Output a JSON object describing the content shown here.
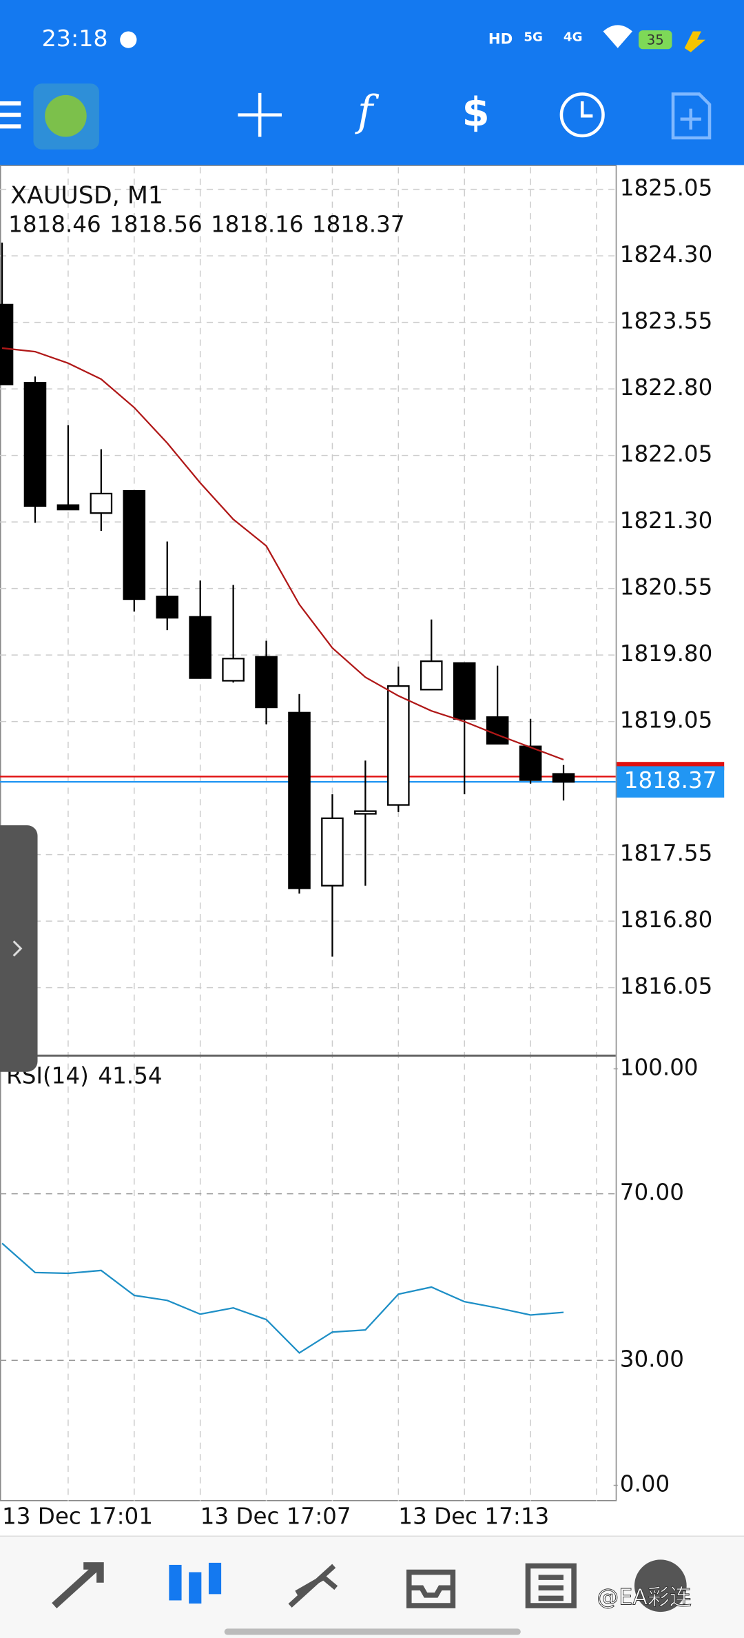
{
  "status_bar": {
    "time": "23:18",
    "battery": "35"
  },
  "watermark": "@EA彩连",
  "chart_data": {
    "type": "candlestick",
    "title": "XAUUSD, M1",
    "categories": [
      "13 Dec 17:01",
      null,
      null,
      null,
      null,
      null,
      "13 Dec 17:07",
      null,
      null,
      null,
      null,
      null,
      "13 Dec 17:13",
      null,
      null,
      null,
      null,
      null
    ],
    "open": [
      1823.75,
      1822.87,
      1821.49,
      1821.4,
      1821.65,
      1820.46,
      1820.23,
      1819.51,
      1819.78,
      1819.15,
      1817.2,
      1818.01,
      1818.11,
      1819.41,
      1819.71,
      1819.1,
      1818.77,
      1818.46
    ],
    "high": [
      1824.45,
      1822.94,
      1822.39,
      1822.12,
      1821.65,
      1821.08,
      1820.64,
      1820.59,
      1819.96,
      1819.36,
      1818.23,
      1818.61,
      1819.67,
      1820.2,
      1819.71,
      1819.68,
      1819.08,
      1818.56
    ],
    "low": [
      1822.85,
      1821.29,
      1821.44,
      1821.2,
      1820.29,
      1820.08,
      1819.54,
      1819.49,
      1819.02,
      1817.11,
      1816.4,
      1817.2,
      1818.03,
      1819.41,
      1818.23,
      1818.8,
      1818.35,
      1818.16
    ],
    "close": [
      1822.85,
      1821.48,
      1821.44,
      1821.62,
      1820.43,
      1820.22,
      1819.54,
      1819.76,
      1819.21,
      1817.17,
      1817.96,
      1818.04,
      1819.45,
      1819.73,
      1819.08,
      1818.8,
      1818.39,
      1818.37
    ],
    "up_color": "#ffffff",
    "down_color": "#000000",
    "moving_average": {
      "color": "#b01818",
      "values": [
        1823.26,
        1823.22,
        1823.09,
        1822.91,
        1822.59,
        1822.19,
        1821.74,
        1821.33,
        1821.03,
        1820.37,
        1819.88,
        1819.55,
        1819.34,
        1819.17,
        1819.05,
        1818.9,
        1818.76,
        1818.62
      ]
    },
    "bid": 1818.37,
    "ask": 1818.43,
    "bid_color": "#2196f3",
    "ask_color": "#e01010",
    "ylim": [
      1815.29,
      1825.3
    ],
    "yticks": [
      {
        "value": 1825.05,
        "label": "1825.05"
      },
      {
        "value": 1824.3,
        "label": "1824.30"
      },
      {
        "value": 1823.55,
        "label": "1823.55"
      },
      {
        "value": 1822.8,
        "label": "1822.80"
      },
      {
        "value": 1822.05,
        "label": "1822.05"
      },
      {
        "value": 1821.3,
        "label": "1821.30"
      },
      {
        "value": 1820.55,
        "label": "1820.55"
      },
      {
        "value": 1819.8,
        "label": "1819.80"
      },
      {
        "value": 1819.05,
        "label": "1819.05"
      },
      {
        "value": 1817.55,
        "label": "1817.55"
      },
      {
        "value": 1816.8,
        "label": "1816.80"
      },
      {
        "value": 1816.05,
        "label": "1816.05"
      }
    ],
    "grid": true,
    "indicator": {
      "name": "RSI(14)",
      "color": "#1e8fc6",
      "values": [
        58.1,
        51.1,
        50.9,
        51.6,
        45.6,
        44.4,
        41.1,
        42.6,
        39.8,
        31.8,
        36.8,
        37.3,
        45.9,
        47.6,
        44.1,
        42.6,
        40.9,
        41.54
      ],
      "ylim": [
        -3.8,
        102.8
      ],
      "yticks": [
        {
          "value": 100,
          "label": "100.00"
        },
        {
          "value": 70,
          "label": "70.00"
        },
        {
          "value": 30,
          "label": "30.00"
        },
        {
          "value": 0,
          "label": "0.00"
        }
      ]
    }
  }
}
